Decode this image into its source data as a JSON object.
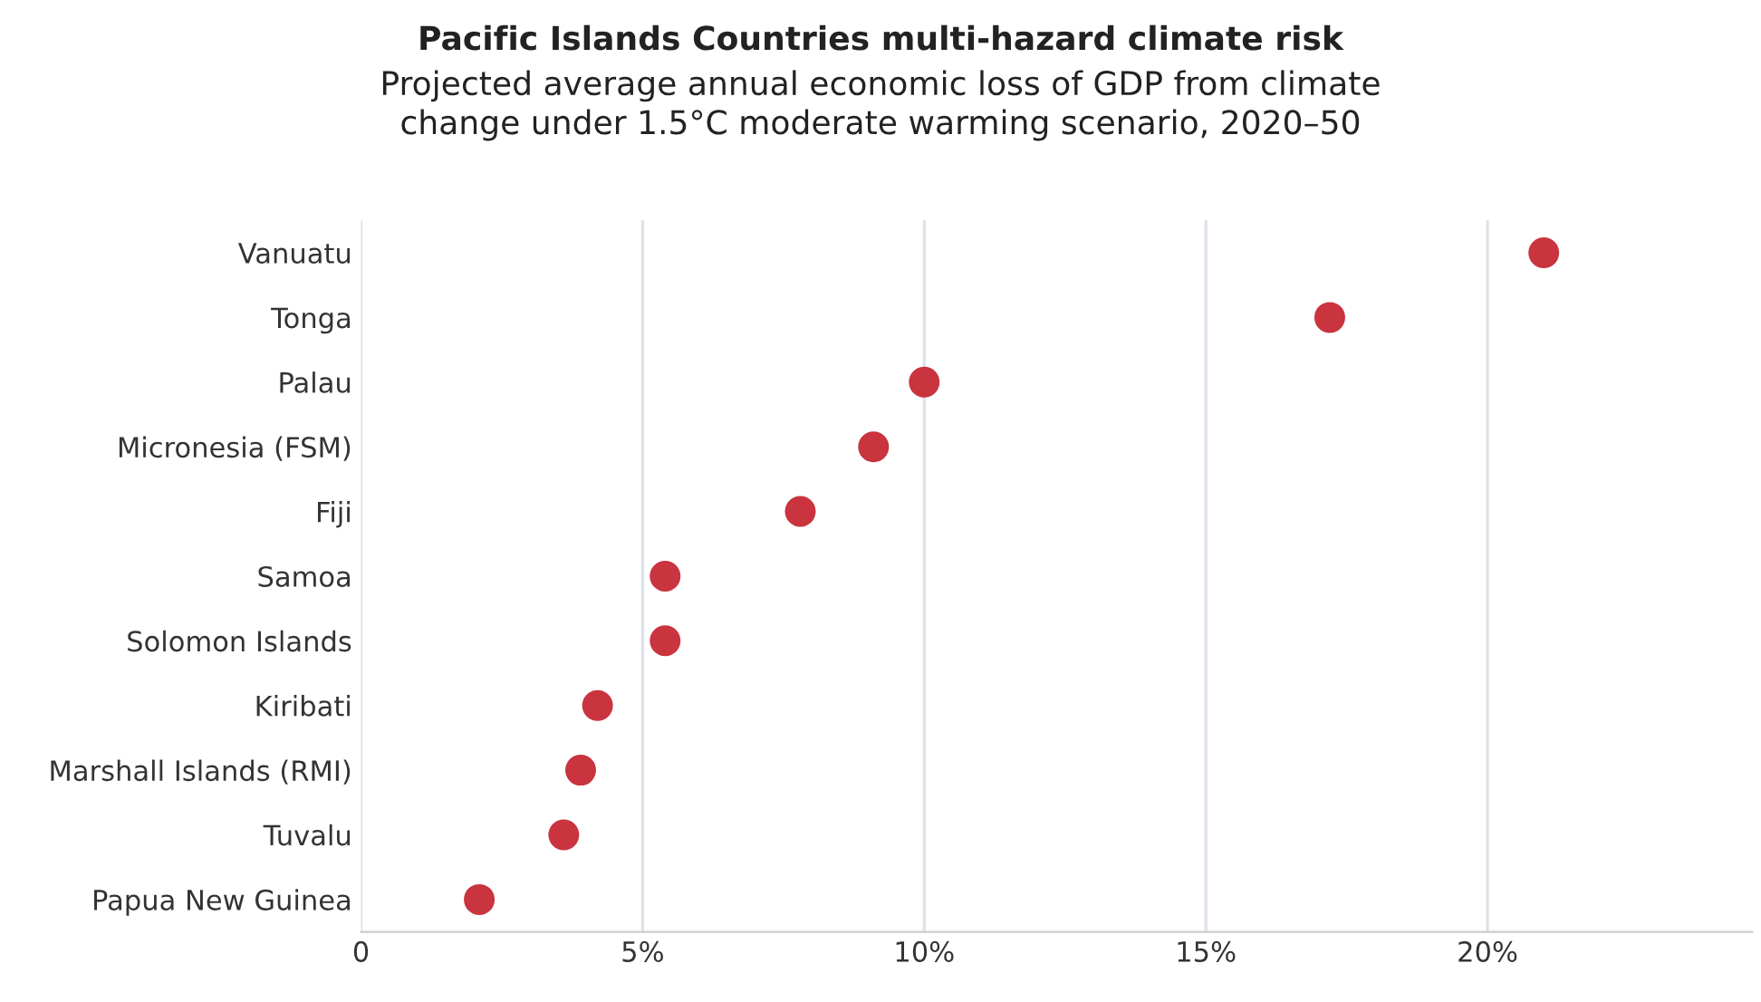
{
  "chart_data": {
    "type": "scatter",
    "orientation": "horizontal",
    "title": "Pacific Islands Countries multi-hazard climate risk",
    "subtitle": "Projected average annual economic loss of GDP from climate\nchange under 1.5°C moderate warming scenario, 2020–50",
    "categories": [
      "Vanuatu",
      "Tonga",
      "Palau",
      "Micronesia (FSM)",
      "Fiji",
      "Samoa",
      "Solomon Islands",
      "Kiribati",
      "Marshall Islands (RMI)",
      "Tuvalu",
      "Papua New Guinea"
    ],
    "values": [
      21.0,
      17.2,
      10.0,
      9.1,
      7.8,
      5.4,
      5.4,
      4.2,
      3.9,
      3.6,
      2.1
    ],
    "color": "#c9343f",
    "marker": "circle",
    "grid": "x",
    "xlim": [
      0,
      24.7
    ],
    "xticks": [
      0,
      {
        "value": 5,
        "label": "5%"
      },
      {
        "value": 10,
        "label": "10%"
      },
      {
        "value": 15,
        "label": "15%"
      },
      {
        "value": 20,
        "label": "20%"
      }
    ]
  }
}
